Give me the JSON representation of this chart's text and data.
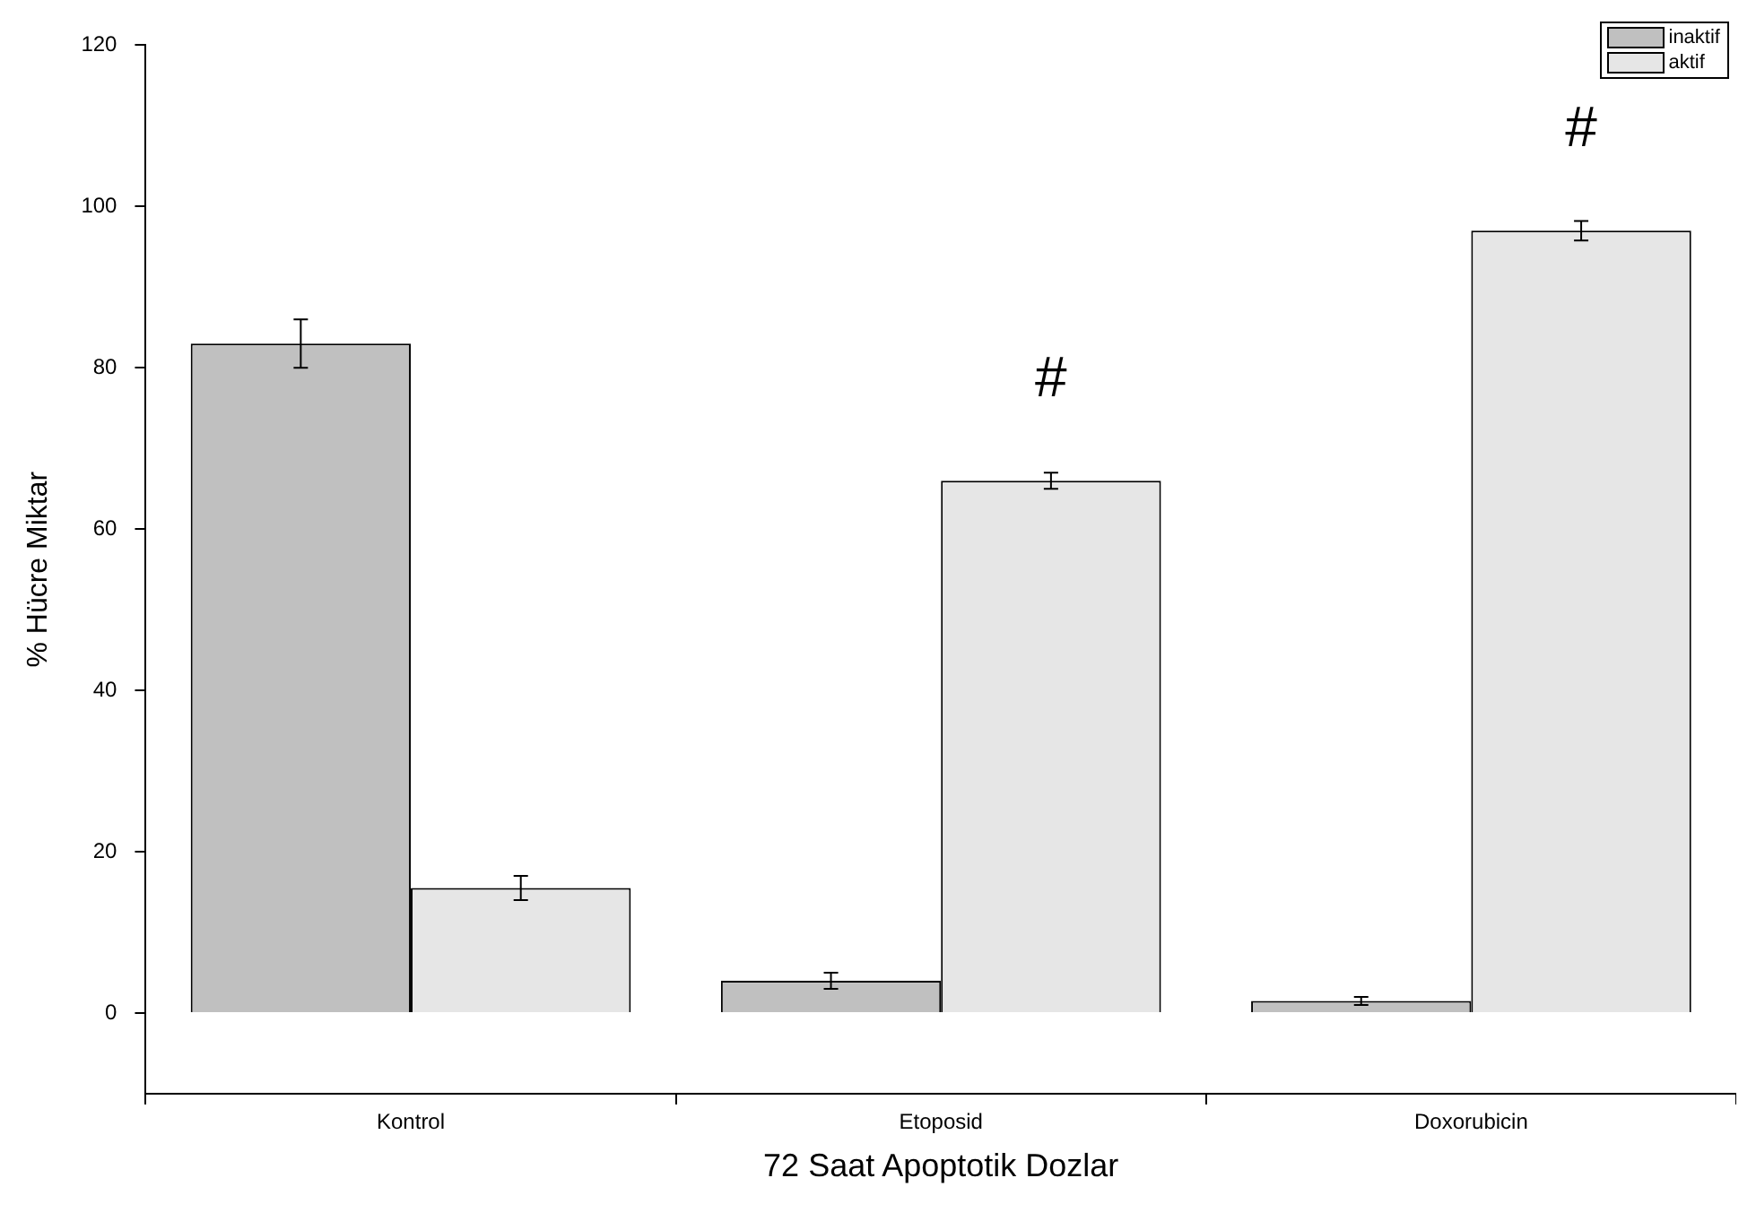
{
  "chart_data": {
    "type": "bar",
    "xlabel": "72 Saat Apoptotik Dozlar",
    "ylabel": "% Hücre Miktar",
    "categories": [
      "Kontrol",
      "Etoposid",
      "Doxorubicin"
    ],
    "series": [
      {
        "name": "inaktif",
        "color": "#c0c0c0",
        "values": [
          83,
          4,
          1.5
        ],
        "errors": [
          3,
          1,
          0.5
        ]
      },
      {
        "name": "aktif",
        "color": "#e6e6e6",
        "values": [
          15.5,
          66,
          97
        ],
        "errors": [
          1.5,
          1,
          1.2
        ]
      }
    ],
    "ylim": [
      -10,
      120
    ],
    "yticks": [
      0,
      20,
      40,
      60,
      80,
      100,
      120
    ],
    "grid": false,
    "legend": "top right",
    "annotations": [
      {
        "text": "#",
        "x": "Etoposid",
        "y": 66
      },
      {
        "text": "#",
        "x": "Doxorubicin",
        "y": 97
      }
    ]
  }
}
